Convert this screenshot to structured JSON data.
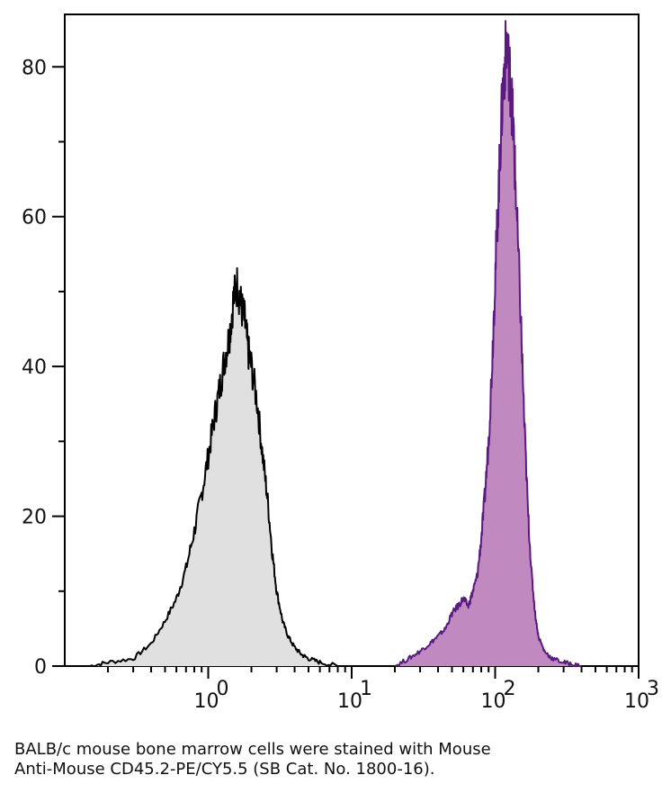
{
  "chart_data": {
    "type": "area",
    "x_scale": "log",
    "xlim": [
      0.1,
      1000
    ],
    "ylim": [
      0,
      87
    ],
    "x_ticks": [
      {
        "value": 1,
        "label": "10",
        "exp": "0"
      },
      {
        "value": 10,
        "label": "10",
        "exp": "1"
      },
      {
        "value": 100,
        "label": "10",
        "exp": "2"
      },
      {
        "value": 1000,
        "label": "10",
        "exp": "3"
      }
    ],
    "y_ticks": [
      {
        "value": 0,
        "label": "0"
      },
      {
        "value": 20,
        "label": "20"
      },
      {
        "value": 40,
        "label": "40"
      },
      {
        "value": 60,
        "label": "60"
      },
      {
        "value": 80,
        "label": "80"
      }
    ],
    "grid": false,
    "legend": "none",
    "series": [
      {
        "fill": "#e0e0e0",
        "stroke": "#000000",
        "x": [
          0.15,
          0.2,
          0.3,
          0.4,
          0.5,
          0.6,
          0.7,
          0.8,
          0.9,
          1.0,
          1.1,
          1.2,
          1.3,
          1.4,
          1.5,
          1.6,
          1.7,
          1.8,
          1.9,
          2.0,
          2.2,
          2.4,
          2.6,
          2.8,
          3.0,
          3.3,
          3.6,
          4.0,
          4.5,
          5.0,
          6.0,
          8.0
        ],
        "y": [
          0,
          0.5,
          1,
          3,
          6,
          9,
          13,
          18,
          23,
          28,
          33,
          37,
          41,
          44,
          49,
          51,
          48,
          46,
          42,
          40,
          35,
          28,
          22,
          15,
          10,
          6,
          4,
          2.5,
          1.5,
          1,
          0.5,
          0
        ]
      },
      {
        "fill": "#c08ac0",
        "stroke": "#5a1a80",
        "x": [
          20,
          25,
          30,
          35,
          40,
          45,
          50,
          55,
          60,
          65,
          70,
          75,
          80,
          85,
          90,
          95,
          100,
          105,
          110,
          115,
          120,
          125,
          130,
          135,
          140,
          150,
          160,
          170,
          180,
          190,
          200,
          220,
          250,
          300,
          350,
          400
        ],
        "y": [
          0,
          1,
          2,
          3,
          4,
          5,
          7,
          8,
          9,
          8,
          10,
          12,
          17,
          23,
          30,
          40,
          52,
          62,
          72,
          79,
          83,
          80,
          76,
          70,
          62,
          48,
          32,
          20,
          12,
          7,
          4,
          2,
          1,
          0.5,
          0.2,
          0
        ]
      }
    ]
  },
  "caption": {
    "line1": "BALB/c mouse bone marrow cells were stained with Mouse",
    "line2": "Anti-Mouse CD45.2-PE/CY5.5 (SB Cat. No. 1800-16)."
  }
}
